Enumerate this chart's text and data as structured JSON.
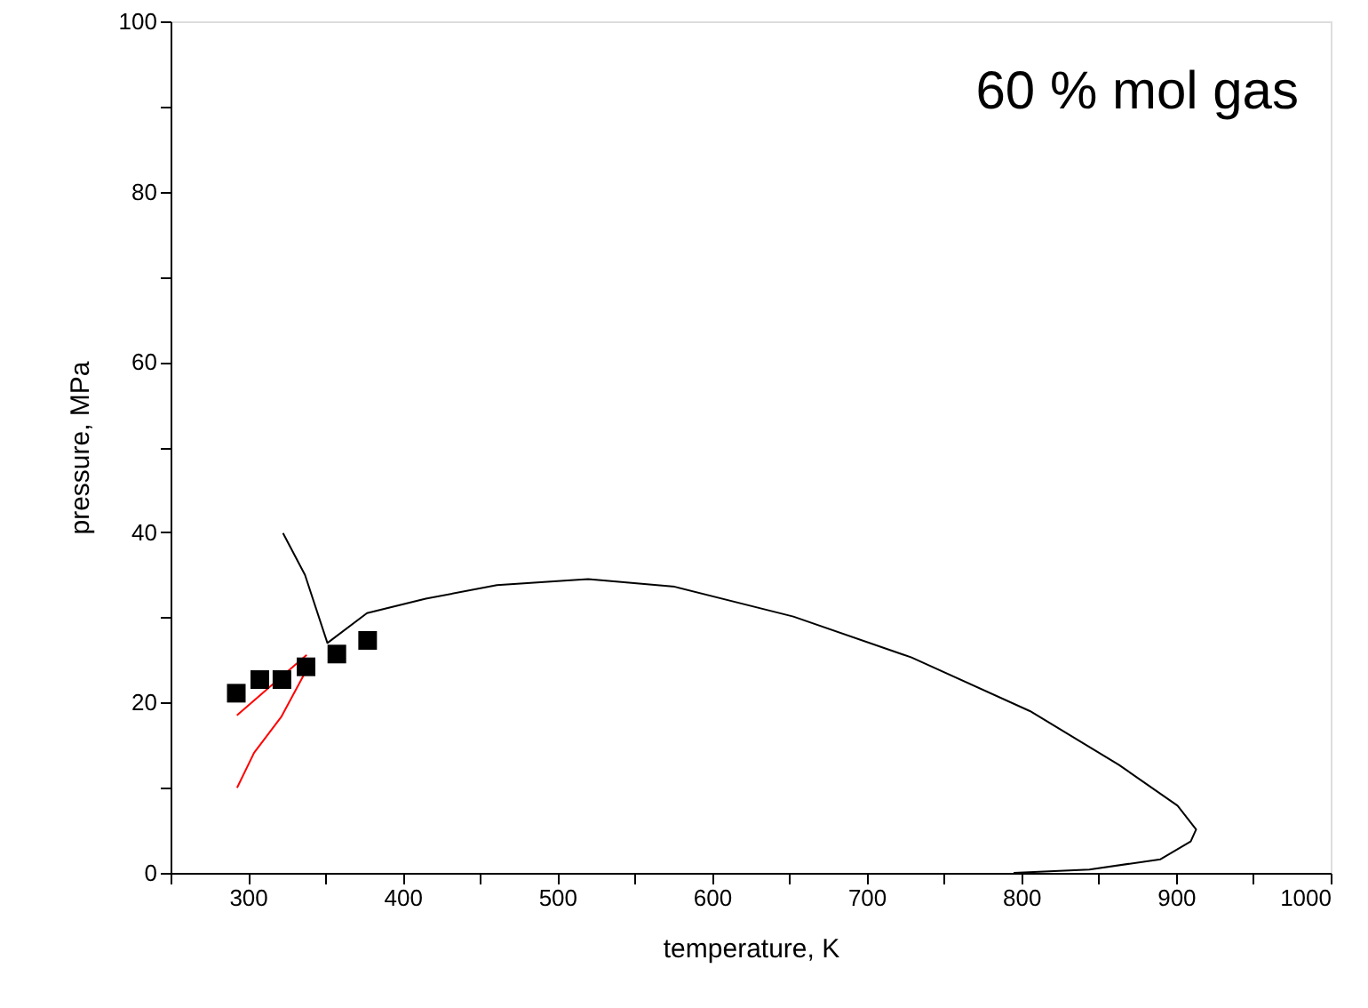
{
  "chart_data": {
    "type": "line",
    "xlabel": "temperature, K",
    "ylabel": "pressure, MPa",
    "annotations": [
      "60 % mol gas"
    ],
    "xlim": [
      250,
      1000
    ],
    "ylim": [
      0,
      100
    ],
    "xticks": [
      {
        "value": 250,
        "label": null
      },
      300,
      {
        "value": 350,
        "label": null
      },
      400,
      {
        "value": 450,
        "label": null
      },
      500,
      {
        "value": 550,
        "label": null
      },
      600,
      {
        "value": 650,
        "label": null
      },
      700,
      {
        "value": 750,
        "label": null
      },
      800,
      {
        "value": 850,
        "label": null
      },
      900,
      {
        "value": 950,
        "label": null
      },
      1000
    ],
    "yticks": [
      0,
      {
        "value": 10,
        "label": null
      },
      20,
      {
        "value": 30,
        "label": null
      },
      40,
      {
        "value": 50,
        "label": null
      },
      60,
      {
        "value": 70,
        "label": null
      },
      80,
      {
        "value": 90,
        "label": null
      },
      100
    ],
    "grid": false,
    "series": [
      {
        "type": "line",
        "color": "#000000",
        "marker": "none",
        "x": [
          322.7,
          336.9,
          351.4,
          377,
          415,
          461,
          511,
          520,
          576,
          652.6,
          729,
          805.6,
          863,
          901,
          913,
          909.5,
          890,
          844,
          795
        ],
        "values": [
          39.9,
          35.0,
          27.0,
          30.5,
          32.2,
          33.8,
          34.4,
          34.5,
          33.6,
          30.1,
          25.3,
          19.0,
          12.7,
          7.9,
          5.1,
          3.7,
          1.6,
          0.4,
          0
        ]
      },
      {
        "type": "line",
        "color": "#ff0000",
        "marker": "none",
        "x": [
          292.9,
          338
        ],
        "values": [
          18.5,
          25.6
        ]
      },
      {
        "type": "line",
        "color": "#ff0000",
        "marker": "none",
        "x": [
          293,
          304,
          321.5,
          337.5
        ],
        "values": [
          10.0,
          14.1,
          18.3,
          23.7
        ]
      },
      {
        "type": "scatter",
        "color": "#000000",
        "marker": "square",
        "x": [
          292.5,
          307.7,
          322,
          337.6,
          357.5,
          377.4
        ],
        "values": [
          21.1,
          22.7,
          22.7,
          24.2,
          25.7,
          27.3
        ]
      }
    ]
  }
}
